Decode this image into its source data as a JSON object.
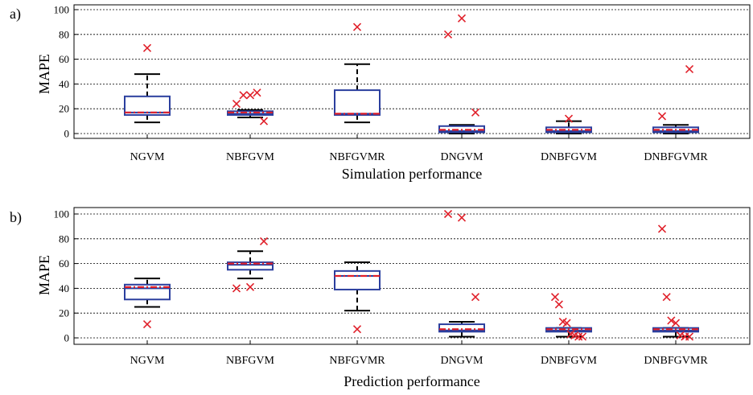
{
  "chart_data": [
    {
      "type": "box",
      "panel_label": "a)",
      "xlabel": "Simulation performance",
      "ylabel": "MAPE",
      "ylim": [
        0,
        100
      ],
      "yticks": [
        0,
        20,
        40,
        60,
        80,
        100
      ],
      "grid": "horizontal-dotted",
      "categories": [
        "NGVM",
        "NBFGVM",
        "NBFGVMR",
        "DNGVM",
        "DNBFGVM",
        "DNBFGVMR"
      ],
      "boxes": [
        {
          "whisker_low": 9,
          "q1": 15,
          "median": 17,
          "mean": 17,
          "q3": 30,
          "whisker_high": 48,
          "outliers": [
            69
          ]
        },
        {
          "whisker_low": 13,
          "q1": 15,
          "median": 16,
          "mean": 17,
          "q3": 18,
          "whisker_high": 19,
          "outliers": [
            24,
            31,
            31,
            33,
            10
          ]
        },
        {
          "whisker_low": 9,
          "q1": 15,
          "median": 16,
          "mean": 16,
          "q3": 35,
          "whisker_high": 56,
          "outliers": [
            86
          ]
        },
        {
          "whisker_low": 0,
          "q1": 1,
          "median": 2,
          "mean": 3,
          "q3": 6,
          "whisker_high": 7,
          "outliers": [
            80,
            93,
            17
          ]
        },
        {
          "whisker_low": 0,
          "q1": 1,
          "median": 2,
          "mean": 3,
          "q3": 5,
          "whisker_high": 10,
          "outliers": [
            12
          ]
        },
        {
          "whisker_low": 0,
          "q1": 1,
          "median": 2,
          "mean": 3,
          "q3": 5,
          "whisker_high": 7,
          "outliers": [
            14,
            52
          ]
        }
      ]
    },
    {
      "type": "box",
      "panel_label": "b)",
      "xlabel": "Prediction performance",
      "ylabel": "MAPE",
      "ylim": [
        0,
        100
      ],
      "yticks": [
        0,
        20,
        40,
        60,
        80,
        100
      ],
      "grid": "horizontal-dotted",
      "categories": [
        "NGVM",
        "NBFGVM",
        "NBFGVMR",
        "DNGVM",
        "DNBFGVM",
        "DNBFGVMR"
      ],
      "boxes": [
        {
          "whisker_low": 25,
          "q1": 31,
          "median": 40,
          "mean": 41,
          "q3": 43,
          "whisker_high": 48,
          "outliers": [
            11
          ]
        },
        {
          "whisker_low": 48,
          "q1": 55,
          "median": 59,
          "mean": 60,
          "q3": 61,
          "whisker_high": 70,
          "outliers": [
            40,
            41,
            78
          ]
        },
        {
          "whisker_low": 22,
          "q1": 39,
          "median": 50,
          "mean": 50,
          "q3": 54,
          "whisker_high": 61,
          "outliers": [
            7
          ]
        },
        {
          "whisker_low": 1,
          "q1": 5,
          "median": 6,
          "mean": 7,
          "q3": 11,
          "whisker_high": 13,
          "outliers": [
            100,
            97,
            33
          ]
        },
        {
          "whisker_low": 1,
          "q1": 5,
          "median": 6,
          "mean": 7,
          "q3": 8,
          "whisker_high": 8,
          "outliers": [
            33,
            27,
            13,
            12,
            3,
            2,
            1,
            1
          ]
        },
        {
          "whisker_low": 1,
          "q1": 5,
          "median": 6,
          "mean": 7,
          "q3": 8,
          "whisker_high": 8,
          "outliers": [
            88,
            33,
            14,
            12,
            2,
            1,
            1
          ]
        }
      ]
    }
  ],
  "colors": {
    "box": "#2b3f9e",
    "mean_line": "#e0202a",
    "whisker": "#000000",
    "outlier": "#e0202a",
    "grid": "#000000"
  }
}
